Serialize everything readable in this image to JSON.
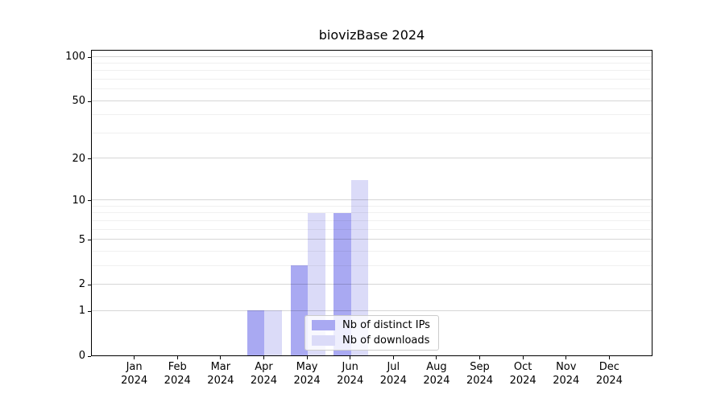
{
  "chart_data": {
    "type": "bar",
    "title": "biovizBase 2024",
    "year_label": "2024",
    "categories": [
      "Jan",
      "Feb",
      "Mar",
      "Apr",
      "May",
      "Jun",
      "Jul",
      "Aug",
      "Sep",
      "Oct",
      "Nov",
      "Dec"
    ],
    "series": [
      {
        "name": "Nb of distinct IPs",
        "color": "#a9a9f2",
        "values": [
          0,
          0,
          0,
          1,
          3,
          8,
          0,
          0,
          0,
          0,
          0,
          0
        ]
      },
      {
        "name": "Nb of downloads",
        "color": "#dbdbf8",
        "values": [
          0,
          0,
          0,
          1,
          8,
          14,
          0,
          0,
          0,
          0,
          0,
          0
        ]
      }
    ],
    "y_axis": {
      "scale": "log1p",
      "ticks": [
        0,
        1,
        2,
        5,
        10,
        20,
        50,
        100
      ],
      "minor_gridlines": [
        3,
        4,
        6,
        7,
        8,
        9,
        30,
        40,
        60,
        70,
        80,
        90
      ],
      "max": 112
    },
    "x_axis": {
      "tick_labels_line2": "2024"
    },
    "legend": {
      "position": "lower center",
      "items": [
        "Nb of distinct IPs",
        "Nb of downloads"
      ]
    },
    "grid": "horizontal",
    "colors": {
      "major_gridline": "#d6d6d6",
      "minor_gridline": "#efefef",
      "axis": "#000000",
      "legend_border": "#cccccc"
    }
  }
}
